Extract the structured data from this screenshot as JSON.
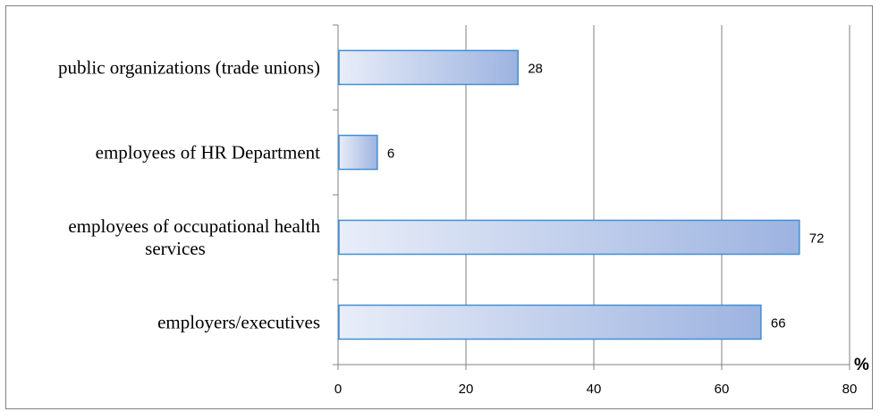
{
  "chart_data": {
    "type": "bar",
    "orientation": "horizontal",
    "categories": [
      [
        "public organizations (trade unions)"
      ],
      [
        "employees of HR Department"
      ],
      [
        "employees of occupational health",
        "services"
      ],
      [
        "employers/executives"
      ]
    ],
    "values": [
      28,
      6,
      72,
      66
    ],
    "xlim": [
      0,
      80
    ],
    "xticks": [
      "0",
      "20",
      "40",
      "60",
      "80"
    ],
    "unit": "%",
    "grid": true,
    "colors": {
      "bar_start": "#e8edf8",
      "bar_end": "#9db3e0",
      "bar_border": "#3f8fd8",
      "grid": "#808080",
      "axis": "#808080"
    }
  }
}
